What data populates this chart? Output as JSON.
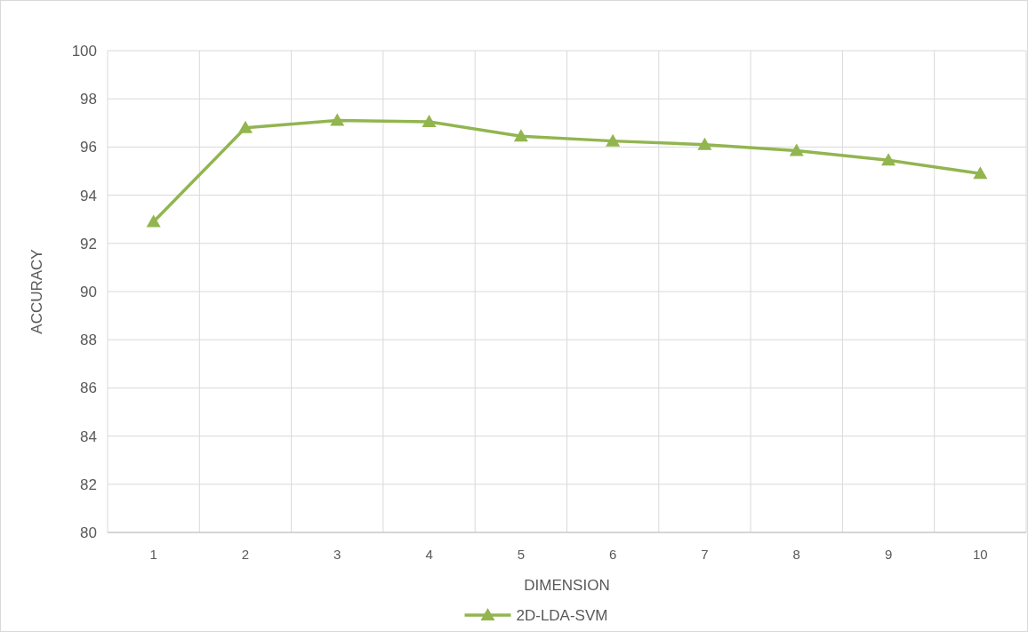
{
  "chart_data": {
    "type": "line",
    "xlabel": "DIMENSION",
    "ylabel": "ACCURACY",
    "categories": [
      "1",
      "2",
      "3",
      "4",
      "5",
      "6",
      "7",
      "8",
      "9",
      "10"
    ],
    "series": [
      {
        "name": "2D-LDA-SVM",
        "color": "#92b550",
        "values": [
          92.9,
          96.8,
          97.1,
          97.05,
          96.45,
          96.25,
          96.1,
          95.85,
          95.45,
          94.9
        ]
      }
    ],
    "ylim": [
      80,
      100
    ],
    "yticks": [
      80,
      82,
      84,
      86,
      88,
      90,
      92,
      94,
      96,
      98,
      100
    ],
    "grid": true,
    "legend": "bottom",
    "marker": "triangle",
    "line_style": "solid"
  }
}
